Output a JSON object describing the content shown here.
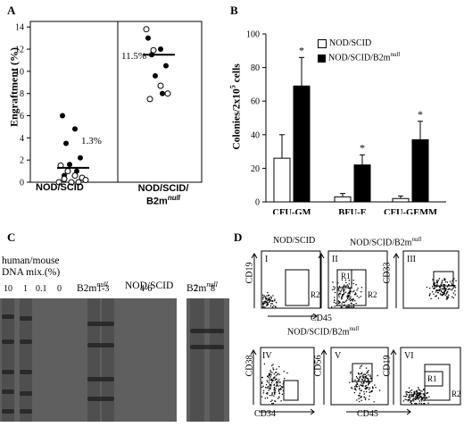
{
  "panels": {
    "A": {
      "label": "A"
    },
    "B": {
      "label": "B"
    },
    "C": {
      "label": "C"
    },
    "D": {
      "label": "D"
    }
  },
  "panelA": {
    "ylabel": "Engraftment (%)",
    "yticks": [
      "0",
      "2",
      "4",
      "6",
      "8",
      "10",
      "12",
      "14"
    ],
    "xcat1": "NOD/SCID",
    "xcat2_line1": "NOD/SCID/",
    "xcat2_line2": "B2m",
    "xcat2_sup": "null",
    "mean1": "1.3%",
    "mean2": "11.5%"
  },
  "panelB": {
    "ylabel": "Colonies/2x10",
    "ylabel_sup": "5",
    "ylabel_tail": " cells",
    "legend1": "NOD/SCID",
    "legend2": "NOD/SCID/B2m",
    "legend2_sup": "null",
    "star": "*"
  },
  "panelC": {
    "header_line1": "human/mouse",
    "header_line2": "DNA mix.(%)",
    "group2": "B2m",
    "group2_sup": "null",
    "group3": "NOD/SCID",
    "group4": "B2m",
    "group4_sup": "null",
    "lanes_mix": [
      "10",
      "1",
      "0.1",
      "0"
    ],
    "lanes_b2m": "1-3",
    "lanes_nodscid": "4-6",
    "lane7": "7",
    "lane8": "8"
  },
  "panelD": {
    "top_title1": "NOD/SCID",
    "top_title2": "NOD/SCID/B2m",
    "top_title2_sup": "null",
    "bottom_title": "NOD/SCID/B2m",
    "bottom_title_sup": "null",
    "plots": [
      {
        "id": "I",
        "ylabel": "CD19",
        "gate1": "R2"
      },
      {
        "id": "II",
        "ylabel": "",
        "gate1": "R1",
        "gate2": "R2"
      },
      {
        "id": "III",
        "ylabel": "CD33"
      },
      {
        "id": "IV",
        "ylabel": "CD38"
      },
      {
        "id": "V",
        "ylabel": "CD56"
      },
      {
        "id": "VI",
        "ylabel": "CD19",
        "gate1": "R1",
        "gate2": "R2"
      }
    ],
    "xlabel_top": "CD45",
    "xlabel_bottom_left": "CD34",
    "xlabel_bottom_right": "CD45"
  },
  "chart_data": [
    {
      "type": "scatter",
      "ylabel": "Engraftment (%)",
      "ylim": [
        0,
        14.5
      ],
      "categories": [
        "NOD/SCID",
        "NOD/SCID/B2mnull"
      ],
      "series": [
        {
          "name": "NOD/SCID",
          "filled": [
            6,
            4.8,
            3.5,
            2.2,
            1.6,
            1.0,
            0.6
          ],
          "open": [
            1.5,
            1.0,
            0.6,
            0.4,
            0.3,
            0.2,
            0.0,
            0.0,
            0.0
          ],
          "mean": 1.3
        },
        {
          "name": "NOD/SCID/B2mnull",
          "filled": [
            13.0,
            12.0,
            11.5,
            10.5,
            9.6,
            8.0
          ],
          "open": [
            13.8,
            11.9,
            8.7,
            8.0,
            7.5
          ],
          "mean": 11.5
        }
      ]
    },
    {
      "type": "bar",
      "ylabel": "Colonies/2x10^5 cells",
      "ylim": [
        0,
        100
      ],
      "yticks": [
        0,
        20,
        40,
        60,
        80,
        100
      ],
      "categories": [
        "CFU-GM",
        "BFU-E",
        "CFU-GEMM"
      ],
      "series": [
        {
          "name": "NOD/SCID",
          "values": [
            26,
            3,
            2
          ],
          "errors": [
            14,
            2,
            1.5
          ],
          "fill": "#ffffff"
        },
        {
          "name": "NOD/SCID/B2mnull",
          "values": [
            69,
            22,
            37
          ],
          "errors": [
            17,
            6,
            11
          ],
          "fill": "#000000"
        }
      ],
      "significance": [
        "*",
        "*",
        "*"
      ]
    }
  ]
}
